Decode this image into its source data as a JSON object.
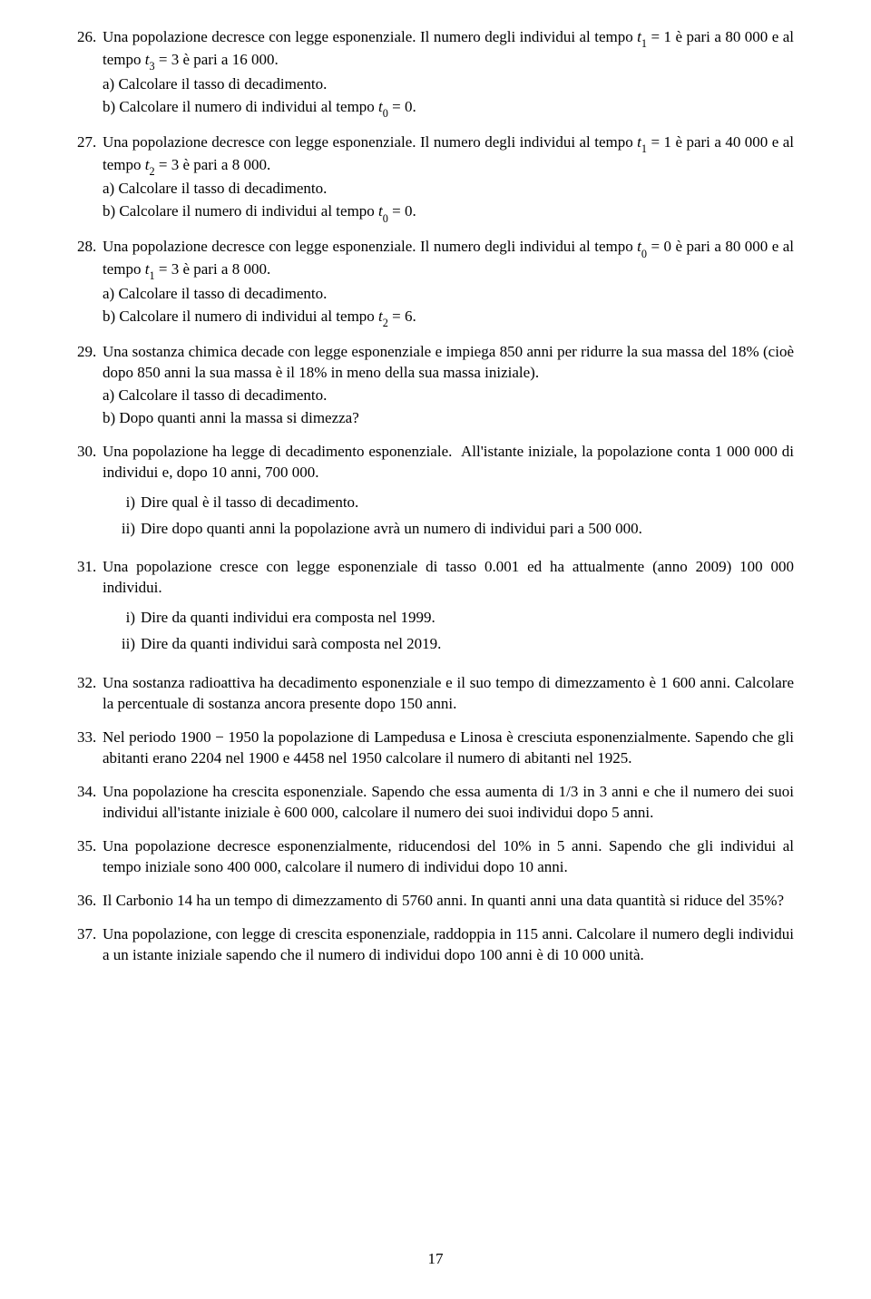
{
  "page_number": "17",
  "problems": [
    {
      "n": "26.",
      "text": "Una popolazione decresce con legge esponenziale. Il numero degli individui al tempo <span class=\"math\">t</span><sub>1</sub> = 1 è pari a 80 000 e al tempo <span class=\"math\">t</span><sub>3</sub> = 3 è pari a 16 000.",
      "subs": [
        "a) Calcolare il tasso di decadimento.",
        "b) Calcolare il numero di individui al tempo <span class=\"math\">t</span><sub>0</sub> = 0."
      ]
    },
    {
      "n": "27.",
      "text": "Una popolazione decresce con legge esponenziale. Il numero degli individui al tempo <span class=\"math\">t</span><sub>1</sub> = 1 è pari a 40 000 e al tempo <span class=\"math\">t</span><sub>2</sub> = 3 è pari a 8 000.",
      "subs": [
        "a) Calcolare il tasso di decadimento.",
        "b) Calcolare il numero di individui al tempo <span class=\"math\">t</span><sub>0</sub> = 0."
      ]
    },
    {
      "n": "28.",
      "text": "Una popolazione decresce con legge esponenziale. Il numero degli individui al tempo <span class=\"math\">t</span><sub>0</sub> = 0 è pari a 80 000 e al tempo <span class=\"math\">t</span><sub>1</sub> = 3 è pari a 8 000.",
      "subs": [
        "a) Calcolare il tasso di decadimento.",
        "b) Calcolare il numero di individui al tempo <span class=\"math\">t</span><sub>2</sub> = 6."
      ]
    },
    {
      "n": "29.",
      "text": "Una sostanza chimica decade con legge esponenziale e impiega 850 anni per ridurre la sua massa del 18% (cioè dopo 850 anni la sua massa è il 18% in meno della sua massa iniziale).",
      "subs": [
        "a) Calcolare il tasso di decadimento.",
        "b) Dopo quanti anni la massa si dimezza?"
      ]
    },
    {
      "n": "30.",
      "text": "Una popolazione ha legge di decadimento esponenziale.&nbsp;&nbsp;All'istante iniziale, la popolazione conta 1 000 000 di individui e, dopo 10 anni, 700 000.",
      "romans": [
        {
          "r": "i)",
          "t": "Dire qual è il tasso di decadimento."
        },
        {
          "r": "ii)",
          "t": "Dire dopo quanti anni la popolazione avrà un numero di individui pari a 500 000."
        }
      ]
    },
    {
      "n": "31.",
      "text": "Una popolazione cresce con legge esponenziale di tasso 0.001 ed ha attualmente (anno 2009) 100 000 individui.",
      "romans": [
        {
          "r": "i)",
          "t": "Dire da quanti individui era composta nel 1999."
        },
        {
          "r": "ii)",
          "t": "Dire da quanti individui sarà composta nel 2019."
        }
      ]
    },
    {
      "n": "32.",
      "text": "Una sostanza radioattiva ha decadimento esponenziale e il suo tempo di dimezzamento è 1 600 anni. Calcolare la percentuale di sostanza ancora presente dopo 150 anni."
    },
    {
      "n": "33.",
      "text": "Nel periodo 1900 − 1950 la popolazione di Lampedusa e Linosa è cresciuta esponenzialmente. Sapendo che gli abitanti erano 2204 nel 1900 e 4458 nel 1950 calcolare il numero di abitanti nel 1925."
    },
    {
      "n": "34.",
      "text": "Una popolazione ha crescita esponenziale. Sapendo che essa aumenta di 1/3 in 3 anni e che il numero dei suoi individui all'istante iniziale è 600 000, calcolare il numero dei suoi individui dopo 5 anni."
    },
    {
      "n": "35.",
      "text": "Una popolazione decresce esponenzialmente, riducendosi del 10% in 5 anni. Sapendo che gli individui al tempo iniziale sono 400 000, calcolare il numero di individui dopo 10 anni."
    },
    {
      "n": "36.",
      "text": "Il Carbonio 14 ha un tempo di dimezzamento di 5760 anni. In quanti anni una data quantità si riduce del 35%?"
    },
    {
      "n": "37.",
      "text": "Una popolazione, con legge di crescita esponenziale, raddoppia in 115 anni. Calcolare il numero degli individui a un istante iniziale sapendo che il numero di individui dopo 100 anni è di 10 000 unità."
    }
  ]
}
